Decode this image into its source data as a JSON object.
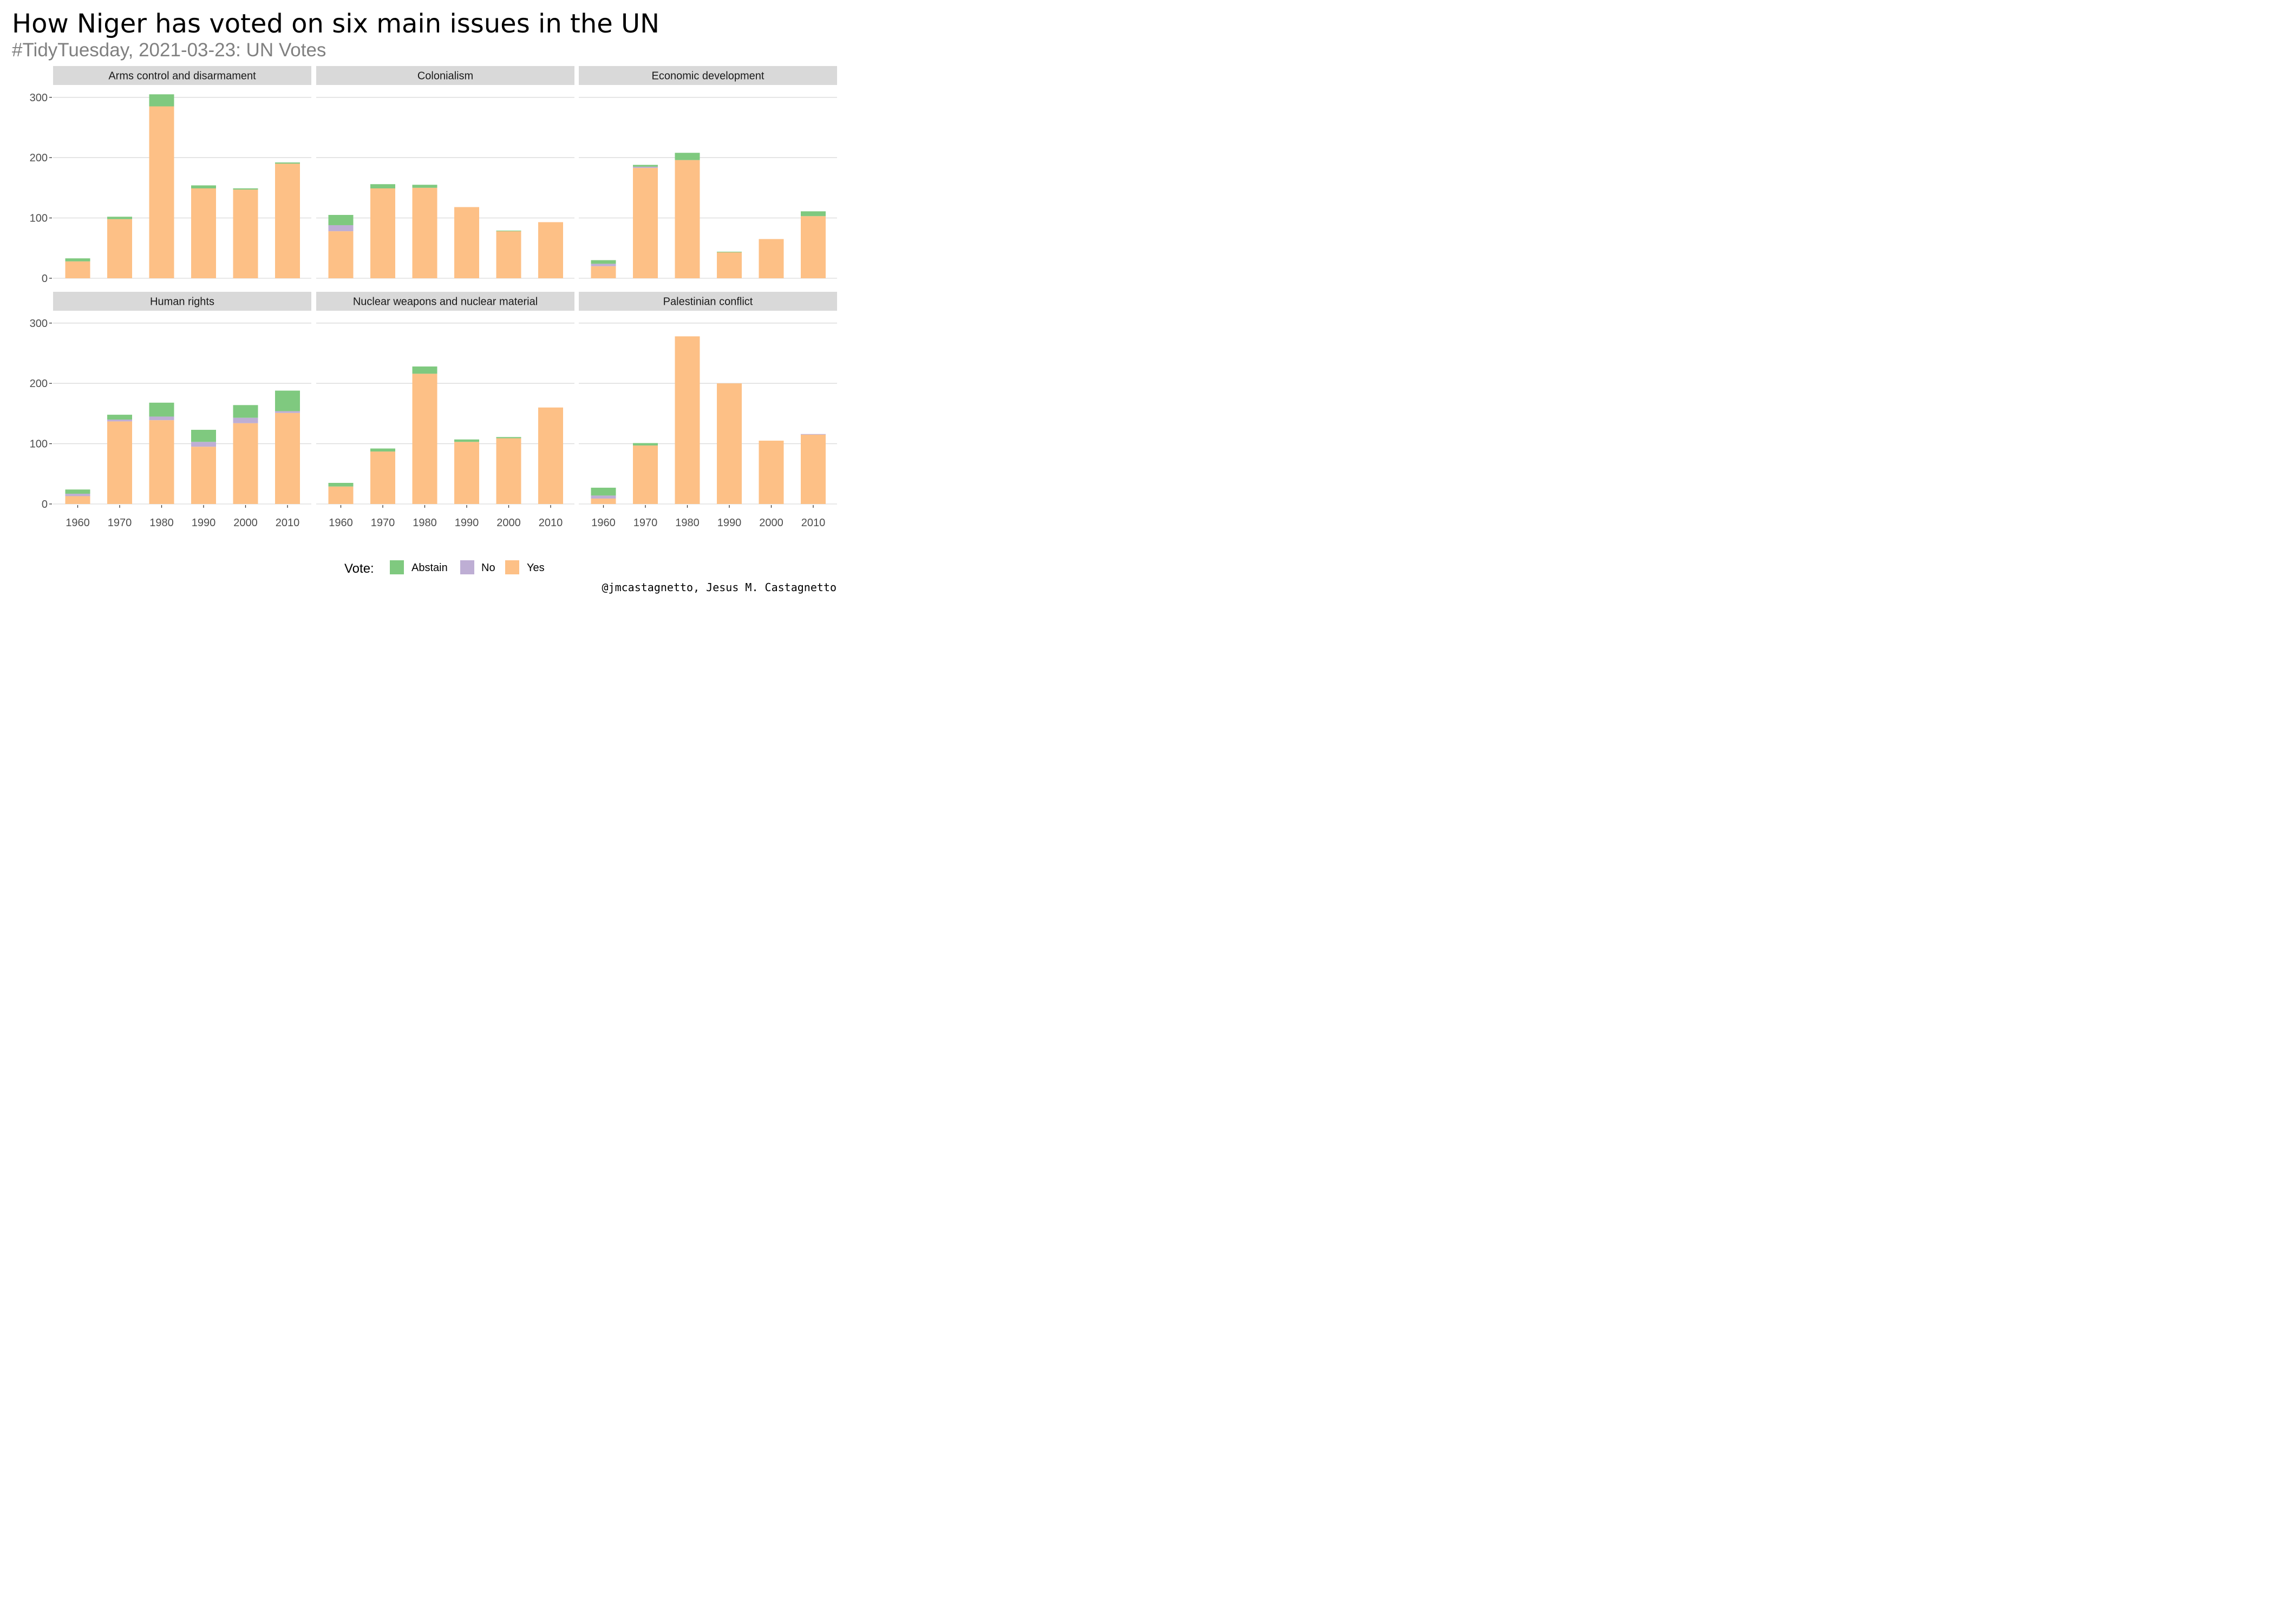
{
  "title": "How Niger has voted on six main issues in the UN",
  "subtitle": "#TidyTuesday, 2021-03-23: UN Votes",
  "caption": "@jmcastagnetto, Jesus M. Castagnetto",
  "chart_data": {
    "type": "bar",
    "stacked": true,
    "categories": [
      "1960",
      "1970",
      "1980",
      "1990",
      "2000",
      "2010"
    ],
    "ylim": [
      0,
      320
    ],
    "y_ticks": [
      0,
      100,
      200,
      300
    ],
    "grid": true,
    "legend": {
      "title": "Vote:",
      "placement": "bottom",
      "entries": [
        {
          "name": "Abstain",
          "color": "#7fc97f"
        },
        {
          "name": "No",
          "color": "#beaed4"
        },
        {
          "name": "Yes",
          "color": "#fdc086"
        }
      ]
    },
    "facets": [
      {
        "title": "Arms control and disarmament",
        "yes": [
          28,
          98,
          285,
          149,
          147,
          190
        ],
        "no": [
          0,
          0,
          0,
          0,
          0,
          0
        ],
        "abstain": [
          5,
          4,
          20,
          5,
          2,
          2
        ]
      },
      {
        "title": "Colonialism",
        "yes": [
          78,
          149,
          150,
          118,
          78,
          93
        ],
        "no": [
          10,
          0,
          0,
          0,
          0,
          0
        ],
        "abstain": [
          17,
          7,
          5,
          0,
          1,
          0
        ]
      },
      {
        "title": "Economic development",
        "yes": [
          20,
          183,
          196,
          43,
          65,
          103
        ],
        "no": [
          4,
          2,
          0,
          0,
          0,
          0
        ],
        "abstain": [
          6,
          3,
          12,
          1,
          0,
          8
        ]
      },
      {
        "title": "Human rights",
        "yes": [
          13,
          137,
          139,
          95,
          134,
          151
        ],
        "no": [
          4,
          3,
          6,
          8,
          9,
          3
        ],
        "abstain": [
          7,
          8,
          23,
          20,
          21,
          34
        ]
      },
      {
        "title": "Nuclear weapons and nuclear material",
        "yes": [
          29,
          87,
          216,
          103,
          109,
          160
        ],
        "no": [
          0,
          0,
          0,
          0,
          0,
          0
        ],
        "abstain": [
          6,
          5,
          12,
          4,
          2,
          0
        ]
      },
      {
        "title": "Palestinian conflict",
        "yes": [
          9,
          97,
          278,
          200,
          105,
          115
        ],
        "no": [
          5,
          0,
          0,
          0,
          0,
          1
        ],
        "abstain": [
          13,
          4,
          0,
          0,
          0,
          0
        ]
      }
    ]
  }
}
